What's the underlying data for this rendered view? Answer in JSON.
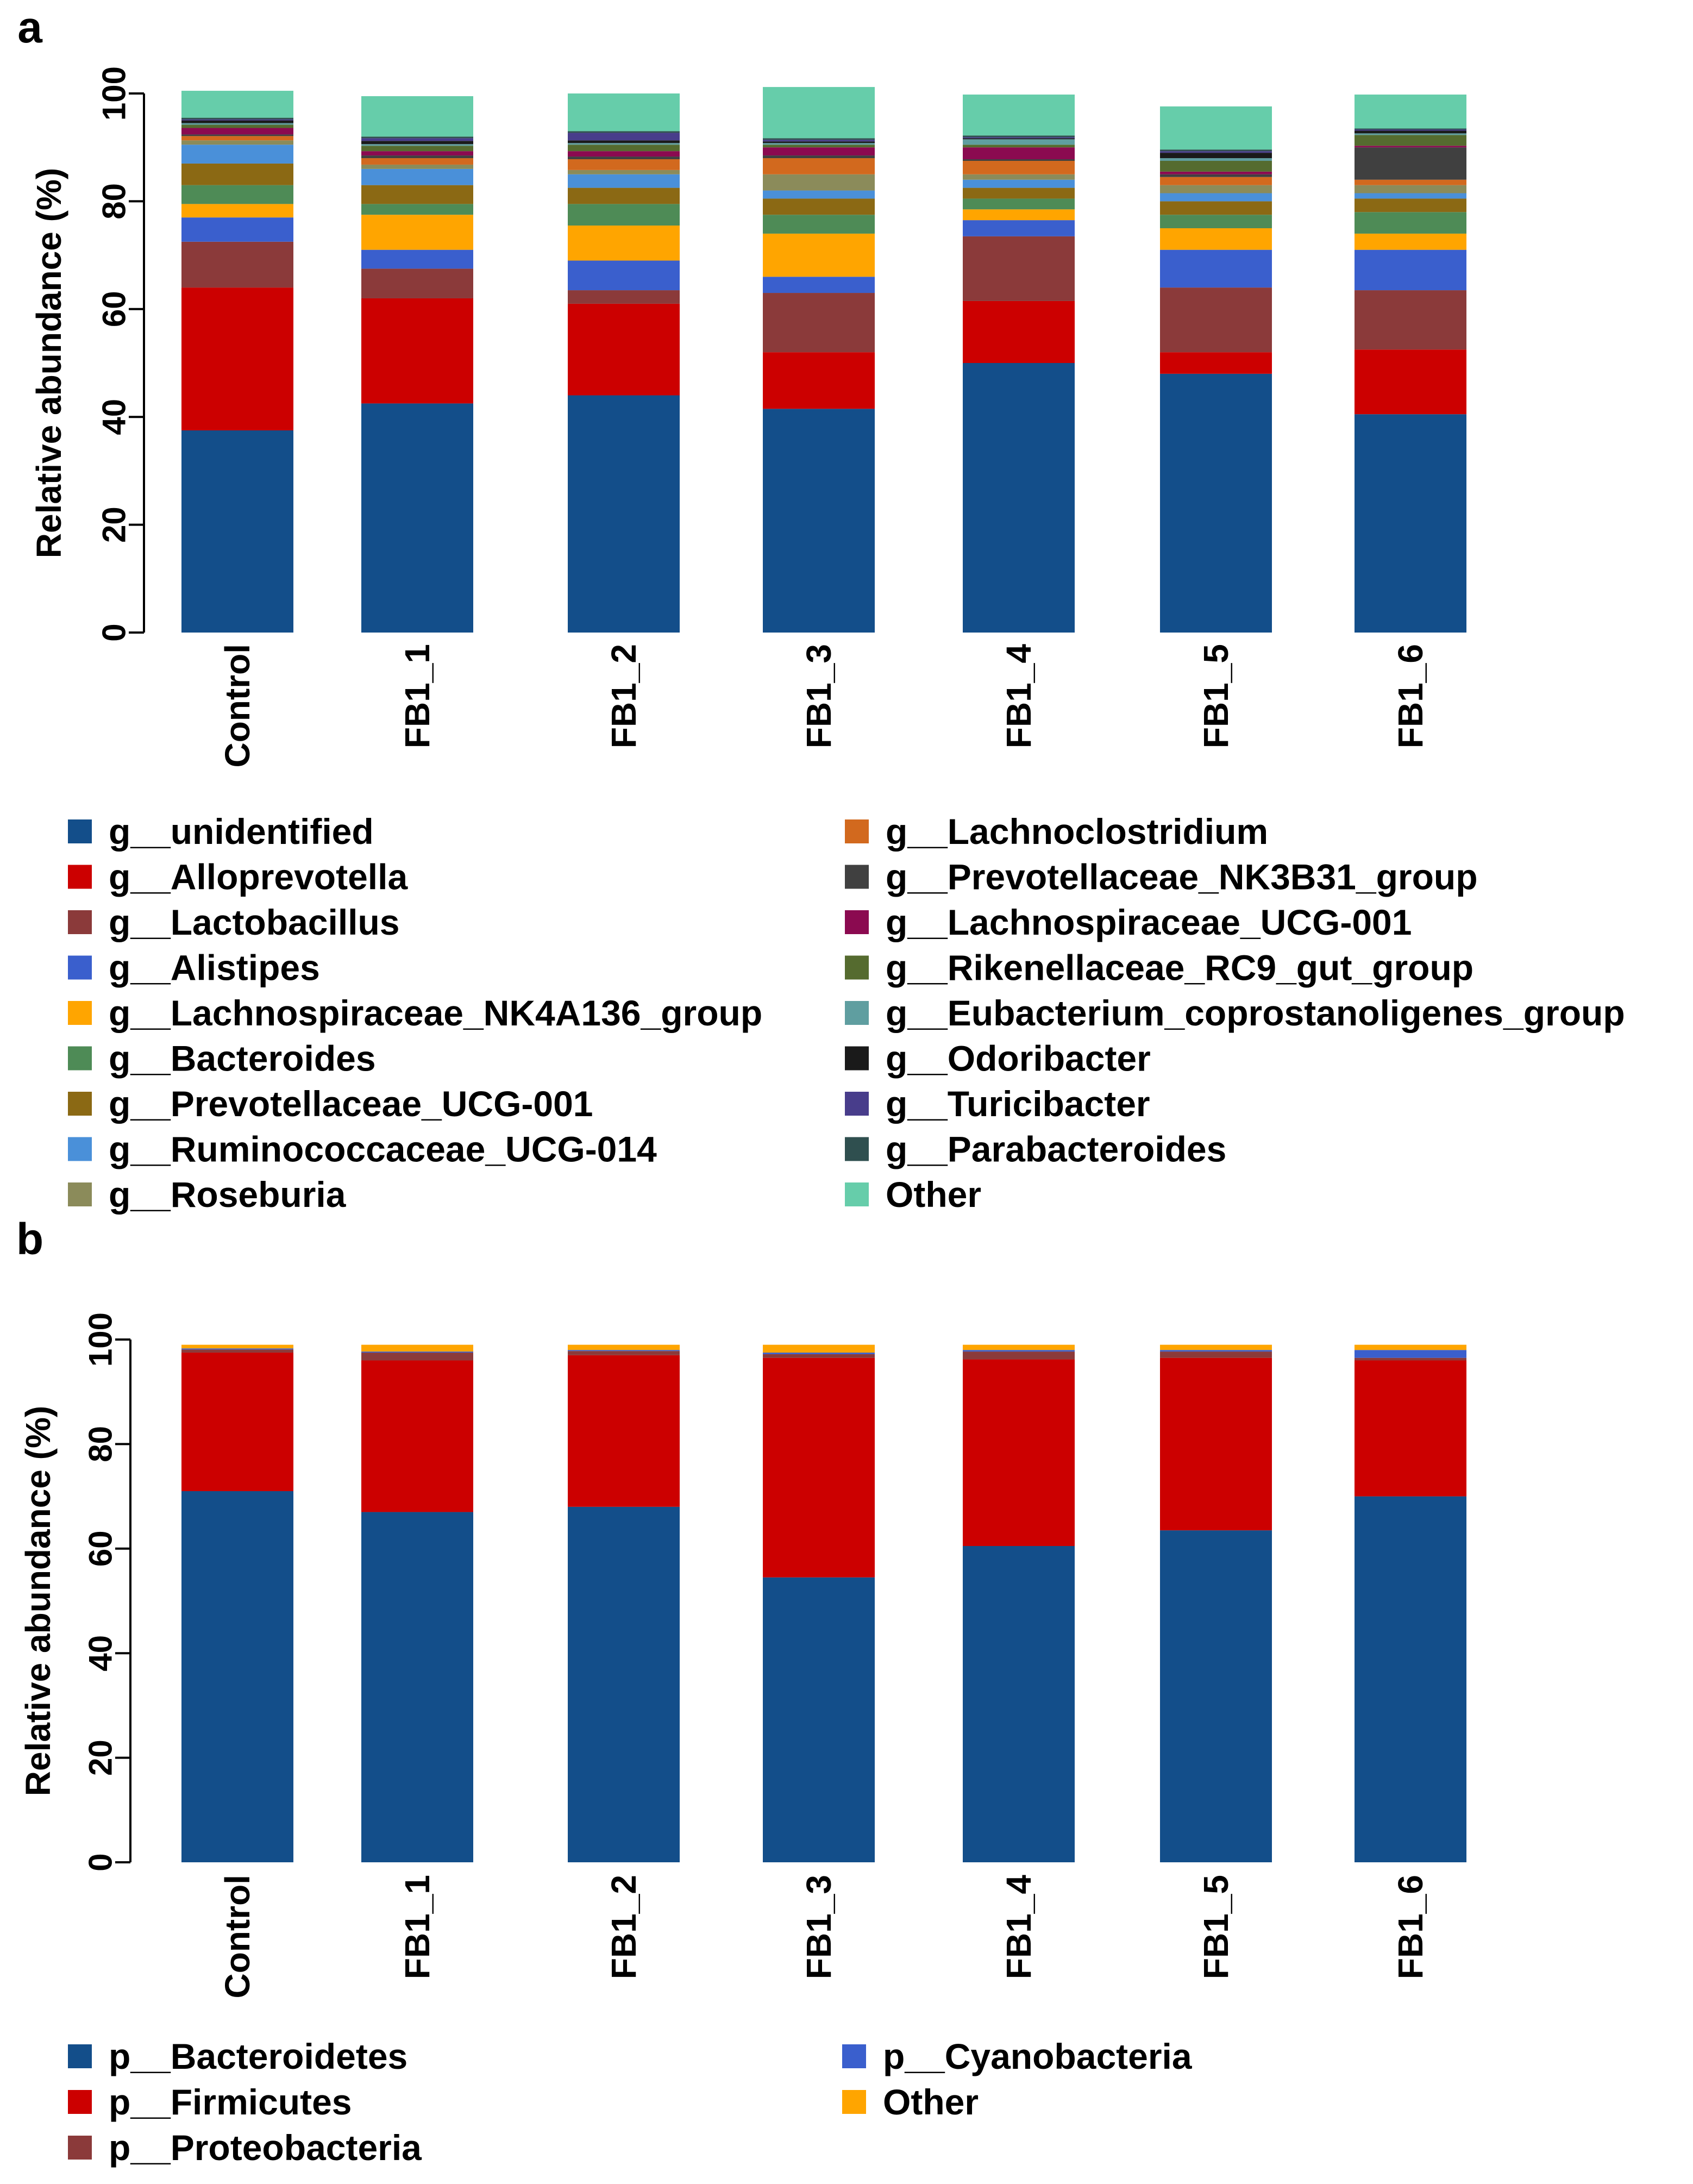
{
  "chart_data": [
    {
      "panel_label": "a",
      "type": "bar",
      "stacked": true,
      "ylabel": "Relative abundance (%)",
      "ylim": [
        0,
        100
      ],
      "yticks": [
        "0",
        "20",
        "40",
        "60",
        "80",
        "100"
      ],
      "categories": [
        "Control",
        "FB1_1",
        "FB1_2",
        "FB1_3",
        "FB1_4",
        "FB1_5",
        "FB1_6"
      ],
      "series": [
        {
          "name": "g__unidentified",
          "color": "#134E8A",
          "values": [
            37.5,
            42.5,
            44,
            41.5,
            50,
            48,
            40.5
          ]
        },
        {
          "name": "g__Alloprevotella",
          "color": "#CC0000",
          "values": [
            26.5,
            19.5,
            17,
            10.5,
            11.5,
            4,
            12
          ]
        },
        {
          "name": "g__Lactobacillus",
          "color": "#8B3A3A",
          "values": [
            8.5,
            5.5,
            2.5,
            11,
            12,
            12,
            11
          ]
        },
        {
          "name": "g__Alistipes",
          "color": "#3A5FCD",
          "values": [
            4.5,
            3.5,
            5.5,
            3,
            3,
            7,
            7.5
          ]
        },
        {
          "name": "g__Lachnospiraceae_NK4A136_group",
          "color": "#FFA500",
          "values": [
            2.5,
            6.5,
            6.5,
            8,
            2,
            4,
            3
          ]
        },
        {
          "name": "g__Bacteroides",
          "color": "#4E8B56",
          "values": [
            3.5,
            2,
            4,
            3.5,
            2,
            2.5,
            4
          ]
        },
        {
          "name": "g__Prevotellaceae_UCG-001",
          "color": "#8B6914",
          "values": [
            4,
            3.5,
            3,
            3,
            2,
            2.5,
            2.5
          ]
        },
        {
          "name": "g__Ruminococcaceae_UCG-014",
          "color": "#4A90D9",
          "values": [
            3.5,
            3,
            2.5,
            1.5,
            1.5,
            1.5,
            1
          ]
        },
        {
          "name": "g__Roseburia",
          "color": "#8B8B5A",
          "values": [
            0.8,
            0.8,
            0.8,
            3,
            1,
            1.5,
            1.5
          ]
        },
        {
          "name": "g__Lachnoclostridium",
          "color": "#D2691E",
          "values": [
            0.8,
            1.2,
            2,
            3,
            2.5,
            1.5,
            1
          ]
        },
        {
          "name": "g__Prevotellaceae_NK3B31_group",
          "color": "#404040",
          "values": [
            0.3,
            0.5,
            0.5,
            0.5,
            0.3,
            0.5,
            6
          ]
        },
        {
          "name": "g__Lachnospiraceae_UCG-001",
          "color": "#8B0A50",
          "values": [
            1.2,
            0.8,
            1,
            1.5,
            2.2,
            0.5,
            0.3
          ]
        },
        {
          "name": "g__Rikenellaceae_RC9_gut_group",
          "color": "#556B2F",
          "values": [
            0.6,
            1,
            1.2,
            0.5,
            0.5,
            2,
            2
          ]
        },
        {
          "name": "g__Eubacterium_coprostanoligenes_group",
          "color": "#5F9EA0",
          "values": [
            0.3,
            0.3,
            0.3,
            0.3,
            1,
            0.5,
            0.3
          ]
        },
        {
          "name": "g__Odoribacter",
          "color": "#1A1A1A",
          "values": [
            0.5,
            0.6,
            0.5,
            0.3,
            0.2,
            1,
            0.5
          ]
        },
        {
          "name": "g__Turicibacter",
          "color": "#483D8B",
          "values": [
            0.2,
            0.5,
            1.4,
            0.3,
            0.2,
            0.3,
            0.2
          ]
        },
        {
          "name": "g__Parabacteroides",
          "color": "#2F4F4F",
          "values": [
            0.3,
            0.3,
            0.3,
            0.3,
            0.3,
            0.3,
            0.2
          ]
        },
        {
          "name": "Other",
          "color": "#66CDAA",
          "values": [
            5,
            7.5,
            7,
            9.5,
            7.6,
            8,
            6.3
          ]
        }
      ]
    },
    {
      "panel_label": "b",
      "type": "bar",
      "stacked": true,
      "ylabel": "Relative abundance (%)",
      "ylim": [
        0,
        100
      ],
      "yticks": [
        "0",
        "20",
        "40",
        "60",
        "80",
        "100"
      ],
      "categories": [
        "Control",
        "FB1_1",
        "FB1_2",
        "FB1_3",
        "FB1_4",
        "FB1_5",
        "FB1_6"
      ],
      "series": [
        {
          "name": "p__Bacteroidetes",
          "color": "#134E8A",
          "values": [
            71,
            67,
            68,
            54.5,
            60.5,
            63.5,
            70
          ]
        },
        {
          "name": "p__Firmicutes",
          "color": "#CC0000",
          "values": [
            26.5,
            29,
            29,
            42,
            35.7,
            33,
            26
          ]
        },
        {
          "name": "p__Proteobacteria",
          "color": "#8B3A3A",
          "values": [
            0.6,
            1.5,
            0.8,
            0.7,
            1.5,
            1.2,
            0.5
          ]
        },
        {
          "name": "p__Cyanobacteria",
          "color": "#3A5FCD",
          "values": [
            0.2,
            0.2,
            0.2,
            0.3,
            0.3,
            0.3,
            1.5
          ]
        },
        {
          "name": "Other",
          "color": "#FFA500",
          "values": [
            0.7,
            1.3,
            1,
            1.5,
            1,
            1,
            1
          ]
        }
      ]
    }
  ]
}
